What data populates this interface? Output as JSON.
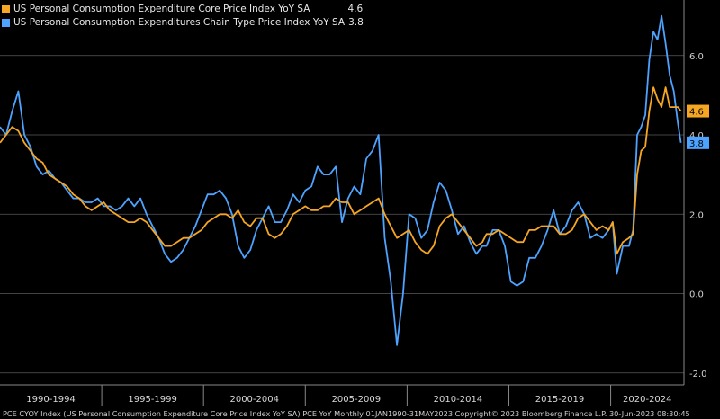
{
  "legend": {
    "items": [
      {
        "label": "US Personal Consumption Expenditure Core Price Index YoY SA",
        "value": "4.6",
        "color": "#f5a623"
      },
      {
        "label": "US Personal Consumption Expenditures Chain Type Price Index YoY SA",
        "value": "3.8",
        "color": "#4da3ff"
      }
    ]
  },
  "footer": {
    "text": "PCE CYOY Index (US Personal Consumption Expenditure Core Price Index YoY SA) PCE YoY  Monthly 01JAN1990-31MAY2023  Copyright© 2023 Bloomberg Finance L.P.  30-Jun-2023 08:30:45"
  },
  "chart_data": {
    "type": "line",
    "xlim": [
      1990.0,
      2023.6
    ],
    "ylim": [
      -2.3,
      7.4
    ],
    "y_ticks": [
      -2.0,
      0.0,
      2.0,
      4.0,
      6.0
    ],
    "y_tick_labels": [
      "-2.0",
      "0.0",
      "2.0",
      "4.0",
      "6.0"
    ],
    "x_period_labels": [
      {
        "label": "1990-1994",
        "start": 1990,
        "end": 1995
      },
      {
        "label": "1995-1999",
        "start": 1995,
        "end": 2000
      },
      {
        "label": "2000-2004",
        "start": 2000,
        "end": 2005
      },
      {
        "label": "2005-2009",
        "start": 2005,
        "end": 2010
      },
      {
        "label": "2010-2014",
        "start": 2010,
        "end": 2015
      },
      {
        "label": "2015-2019",
        "start": 2015,
        "end": 2020
      },
      {
        "label": "2020-2024",
        "start": 2020,
        "end": 2025
      }
    ],
    "grid": "horizontal",
    "last_value_labels": [
      {
        "series": "US Personal Consumption Expenditure Core Price Index YoY SA",
        "text": "4.6",
        "y": 4.6
      },
      {
        "series": "US Personal Consumption Expenditures Chain Type Price Index YoY SA",
        "text": "3.8",
        "y": 3.8
      }
    ],
    "series": [
      {
        "name": "US Personal Consumption Expenditure Core Price Index YoY SA",
        "color": "#f5a623",
        "points": [
          [
            1990.0,
            3.8
          ],
          [
            1990.3,
            4.0
          ],
          [
            1990.6,
            4.2
          ],
          [
            1990.9,
            4.1
          ],
          [
            1991.2,
            3.8
          ],
          [
            1991.5,
            3.6
          ],
          [
            1991.8,
            3.4
          ],
          [
            1992.1,
            3.3
          ],
          [
            1992.4,
            3.0
          ],
          [
            1992.7,
            2.9
          ],
          [
            1993.0,
            2.8
          ],
          [
            1993.3,
            2.7
          ],
          [
            1993.6,
            2.5
          ],
          [
            1993.9,
            2.4
          ],
          [
            1994.2,
            2.2
          ],
          [
            1994.5,
            2.1
          ],
          [
            1994.8,
            2.2
          ],
          [
            1995.1,
            2.3
          ],
          [
            1995.4,
            2.1
          ],
          [
            1995.7,
            2.0
          ],
          [
            1996.0,
            1.9
          ],
          [
            1996.3,
            1.8
          ],
          [
            1996.6,
            1.8
          ],
          [
            1996.9,
            1.9
          ],
          [
            1997.2,
            1.8
          ],
          [
            1997.5,
            1.6
          ],
          [
            1997.8,
            1.4
          ],
          [
            1998.1,
            1.2
          ],
          [
            1998.4,
            1.2
          ],
          [
            1998.7,
            1.3
          ],
          [
            1999.0,
            1.4
          ],
          [
            1999.3,
            1.4
          ],
          [
            1999.6,
            1.5
          ],
          [
            1999.9,
            1.6
          ],
          [
            2000.2,
            1.8
          ],
          [
            2000.5,
            1.9
          ],
          [
            2000.8,
            2.0
          ],
          [
            2001.1,
            2.0
          ],
          [
            2001.4,
            1.9
          ],
          [
            2001.7,
            2.1
          ],
          [
            2002.0,
            1.8
          ],
          [
            2002.3,
            1.7
          ],
          [
            2002.6,
            1.9
          ],
          [
            2002.9,
            1.9
          ],
          [
            2003.2,
            1.5
          ],
          [
            2003.5,
            1.4
          ],
          [
            2003.8,
            1.5
          ],
          [
            2004.1,
            1.7
          ],
          [
            2004.4,
            2.0
          ],
          [
            2004.7,
            2.1
          ],
          [
            2005.0,
            2.2
          ],
          [
            2005.3,
            2.1
          ],
          [
            2005.6,
            2.1
          ],
          [
            2005.9,
            2.2
          ],
          [
            2006.2,
            2.2
          ],
          [
            2006.5,
            2.4
          ],
          [
            2006.8,
            2.3
          ],
          [
            2007.1,
            2.3
          ],
          [
            2007.4,
            2.0
          ],
          [
            2007.7,
            2.1
          ],
          [
            2008.0,
            2.2
          ],
          [
            2008.3,
            2.3
          ],
          [
            2008.6,
            2.4
          ],
          [
            2008.9,
            2.0
          ],
          [
            2009.2,
            1.7
          ],
          [
            2009.5,
            1.4
          ],
          [
            2009.8,
            1.5
          ],
          [
            2010.1,
            1.6
          ],
          [
            2010.4,
            1.3
          ],
          [
            2010.7,
            1.1
          ],
          [
            2011.0,
            1.0
          ],
          [
            2011.3,
            1.2
          ],
          [
            2011.6,
            1.7
          ],
          [
            2011.9,
            1.9
          ],
          [
            2012.2,
            2.0
          ],
          [
            2012.5,
            1.8
          ],
          [
            2012.8,
            1.6
          ],
          [
            2013.1,
            1.4
          ],
          [
            2013.4,
            1.2
          ],
          [
            2013.7,
            1.3
          ],
          [
            2013.9,
            1.5
          ],
          [
            2014.2,
            1.5
          ],
          [
            2014.5,
            1.6
          ],
          [
            2014.8,
            1.5
          ],
          [
            2015.1,
            1.4
          ],
          [
            2015.4,
            1.3
          ],
          [
            2015.7,
            1.3
          ],
          [
            2016.0,
            1.6
          ],
          [
            2016.3,
            1.6
          ],
          [
            2016.6,
            1.7
          ],
          [
            2016.9,
            1.7
          ],
          [
            2017.2,
            1.7
          ],
          [
            2017.5,
            1.5
          ],
          [
            2017.8,
            1.5
          ],
          [
            2018.1,
            1.6
          ],
          [
            2018.4,
            1.9
          ],
          [
            2018.7,
            2.0
          ],
          [
            2019.0,
            1.8
          ],
          [
            2019.3,
            1.6
          ],
          [
            2019.6,
            1.7
          ],
          [
            2019.9,
            1.6
          ],
          [
            2020.1,
            1.8
          ],
          [
            2020.3,
            1.0
          ],
          [
            2020.6,
            1.3
          ],
          [
            2020.9,
            1.4
          ],
          [
            2021.1,
            1.5
          ],
          [
            2021.3,
            3.0
          ],
          [
            2021.5,
            3.6
          ],
          [
            2021.7,
            3.7
          ],
          [
            2021.9,
            4.6
          ],
          [
            2022.1,
            5.2
          ],
          [
            2022.3,
            4.9
          ],
          [
            2022.5,
            4.7
          ],
          [
            2022.7,
            5.2
          ],
          [
            2022.9,
            4.7
          ],
          [
            2023.1,
            4.7
          ],
          [
            2023.3,
            4.7
          ],
          [
            2023.45,
            4.6
          ]
        ]
      },
      {
        "name": "US Personal Consumption Expenditures Chain Type Price Index YoY SA",
        "color": "#4da3ff",
        "points": [
          [
            1990.0,
            4.2
          ],
          [
            1990.3,
            4.0
          ],
          [
            1990.6,
            4.6
          ],
          [
            1990.9,
            5.1
          ],
          [
            1991.2,
            4.0
          ],
          [
            1991.5,
            3.7
          ],
          [
            1991.8,
            3.2
          ],
          [
            1992.1,
            3.0
          ],
          [
            1992.4,
            3.1
          ],
          [
            1992.7,
            2.9
          ],
          [
            1993.0,
            2.8
          ],
          [
            1993.3,
            2.6
          ],
          [
            1993.6,
            2.4
          ],
          [
            1993.9,
            2.4
          ],
          [
            1994.2,
            2.3
          ],
          [
            1994.5,
            2.3
          ],
          [
            1994.8,
            2.4
          ],
          [
            1995.1,
            2.2
          ],
          [
            1995.4,
            2.2
          ],
          [
            1995.7,
            2.1
          ],
          [
            1996.0,
            2.2
          ],
          [
            1996.3,
            2.4
          ],
          [
            1996.6,
            2.2
          ],
          [
            1996.9,
            2.4
          ],
          [
            1997.2,
            2.0
          ],
          [
            1997.5,
            1.7
          ],
          [
            1997.8,
            1.4
          ],
          [
            1998.1,
            1.0
          ],
          [
            1998.4,
            0.8
          ],
          [
            1998.7,
            0.9
          ],
          [
            1999.0,
            1.1
          ],
          [
            1999.3,
            1.4
          ],
          [
            1999.6,
            1.7
          ],
          [
            1999.9,
            2.1
          ],
          [
            2000.2,
            2.5
          ],
          [
            2000.5,
            2.5
          ],
          [
            2000.8,
            2.6
          ],
          [
            2001.1,
            2.4
          ],
          [
            2001.4,
            2.0
          ],
          [
            2001.7,
            1.2
          ],
          [
            2002.0,
            0.9
          ],
          [
            2002.3,
            1.1
          ],
          [
            2002.6,
            1.6
          ],
          [
            2002.9,
            1.9
          ],
          [
            2003.2,
            2.2
          ],
          [
            2003.5,
            1.8
          ],
          [
            2003.8,
            1.8
          ],
          [
            2004.1,
            2.1
          ],
          [
            2004.4,
            2.5
          ],
          [
            2004.7,
            2.3
          ],
          [
            2005.0,
            2.6
          ],
          [
            2005.3,
            2.7
          ],
          [
            2005.6,
            3.2
          ],
          [
            2005.9,
            3.0
          ],
          [
            2006.2,
            3.0
          ],
          [
            2006.5,
            3.2
          ],
          [
            2006.8,
            1.8
          ],
          [
            2007.1,
            2.4
          ],
          [
            2007.4,
            2.7
          ],
          [
            2007.7,
            2.5
          ],
          [
            2008.0,
            3.4
          ],
          [
            2008.3,
            3.6
          ],
          [
            2008.6,
            4.0
          ],
          [
            2008.9,
            1.4
          ],
          [
            2009.2,
            0.3
          ],
          [
            2009.5,
            -1.3
          ],
          [
            2009.8,
            0.0
          ],
          [
            2010.1,
            2.0
          ],
          [
            2010.4,
            1.9
          ],
          [
            2010.7,
            1.4
          ],
          [
            2011.0,
            1.6
          ],
          [
            2011.3,
            2.3
          ],
          [
            2011.6,
            2.8
          ],
          [
            2011.9,
            2.6
          ],
          [
            2012.2,
            2.1
          ],
          [
            2012.5,
            1.5
          ],
          [
            2012.8,
            1.7
          ],
          [
            2013.1,
            1.3
          ],
          [
            2013.4,
            1.0
          ],
          [
            2013.7,
            1.2
          ],
          [
            2013.9,
            1.2
          ],
          [
            2014.2,
            1.6
          ],
          [
            2014.5,
            1.6
          ],
          [
            2014.8,
            1.2
          ],
          [
            2015.1,
            0.3
          ],
          [
            2015.4,
            0.2
          ],
          [
            2015.7,
            0.3
          ],
          [
            2016.0,
            0.9
          ],
          [
            2016.3,
            0.9
          ],
          [
            2016.6,
            1.2
          ],
          [
            2016.9,
            1.6
          ],
          [
            2017.2,
            2.1
          ],
          [
            2017.5,
            1.5
          ],
          [
            2017.8,
            1.7
          ],
          [
            2018.1,
            2.1
          ],
          [
            2018.4,
            2.3
          ],
          [
            2018.7,
            2.0
          ],
          [
            2019.0,
            1.4
          ],
          [
            2019.3,
            1.5
          ],
          [
            2019.6,
            1.4
          ],
          [
            2019.9,
            1.6
          ],
          [
            2020.1,
            1.8
          ],
          [
            2020.3,
            0.5
          ],
          [
            2020.6,
            1.2
          ],
          [
            2020.9,
            1.2
          ],
          [
            2021.1,
            1.6
          ],
          [
            2021.3,
            4.0
          ],
          [
            2021.5,
            4.2
          ],
          [
            2021.7,
            4.5
          ],
          [
            2021.9,
            5.9
          ],
          [
            2022.1,
            6.6
          ],
          [
            2022.3,
            6.4
          ],
          [
            2022.5,
            7.0
          ],
          [
            2022.7,
            6.3
          ],
          [
            2022.9,
            5.5
          ],
          [
            2023.1,
            5.1
          ],
          [
            2023.3,
            4.3
          ],
          [
            2023.45,
            3.8
          ]
        ]
      }
    ]
  }
}
